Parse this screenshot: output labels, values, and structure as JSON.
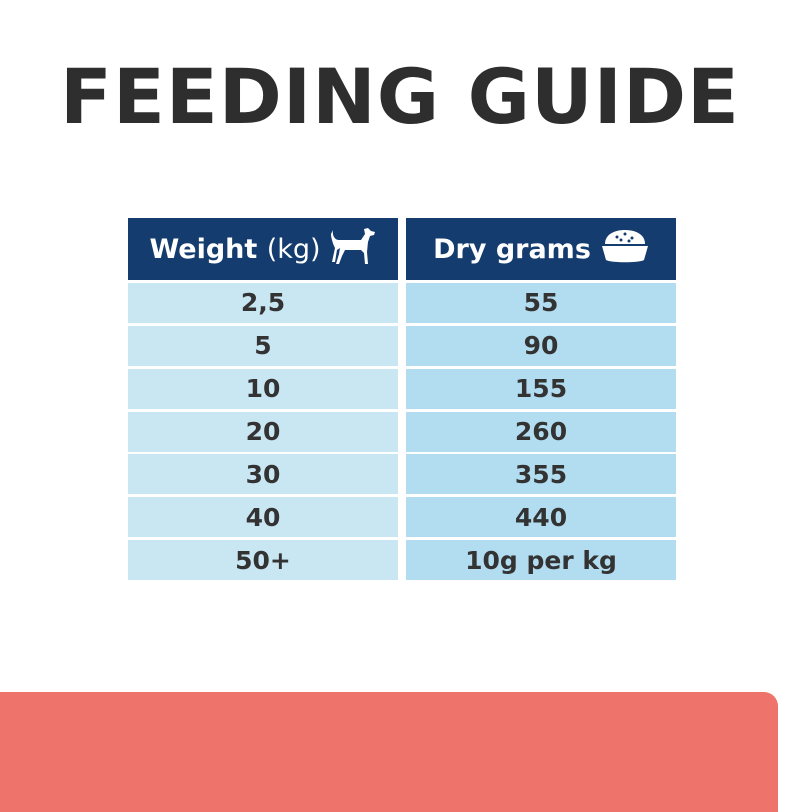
{
  "title": "FEEDING GUIDE",
  "table": {
    "headers": [
      {
        "bold": "Weight",
        "light": "(kg)",
        "icon": "dog-icon"
      },
      {
        "bold": "Dry grams",
        "light": "",
        "icon": "food-bowl-icon"
      }
    ],
    "rows": [
      [
        "2,5",
        "55"
      ],
      [
        "5",
        "90"
      ],
      [
        "10",
        "155"
      ],
      [
        "20",
        "260"
      ],
      [
        "30",
        "355"
      ],
      [
        "40",
        "440"
      ],
      [
        "50+",
        "10g per kg"
      ]
    ]
  },
  "colors": {
    "header": "#143c6e",
    "row_left": "#c9e6f3",
    "row_right": "#b2dcef",
    "band": "#ee736b",
    "title": "#2e2e2e"
  }
}
